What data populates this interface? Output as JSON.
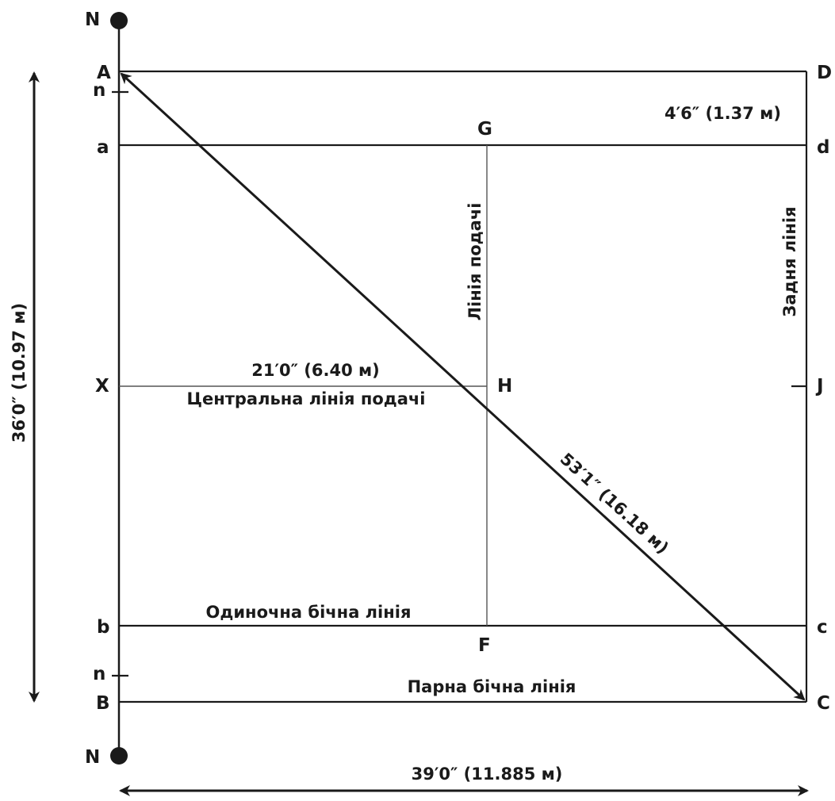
{
  "points": {
    "N_top": "N",
    "N_bottom": "N",
    "A": "A",
    "D": "D",
    "n_top": "n",
    "n_bottom": "n",
    "a": "a",
    "d": "d",
    "G": "G",
    "X": "X",
    "H": "H",
    "J": "J",
    "b": "b",
    "c": "c",
    "F": "F",
    "B": "B",
    "C": "C"
  },
  "labels": {
    "back_gap": "4′6″ (1.37 м)",
    "service_line": "Лінія подачі",
    "back_line": "Задня лінія",
    "half_length": "21′0″ (6.40 м)",
    "center_service_line": "Центральна лінія подачі",
    "diagonal": "53′1″ (16.18 м)",
    "singles_sideline": "Одиночна бічна лінія",
    "doubles_sideline": "Парна бічна лінія",
    "width": "36′0″ (10.97 м)",
    "length": "39′0″ (11.885 м)"
  },
  "colors": {
    "ink": "#1a1a1a",
    "thin_line": "#555555",
    "background": "#ffffff"
  }
}
